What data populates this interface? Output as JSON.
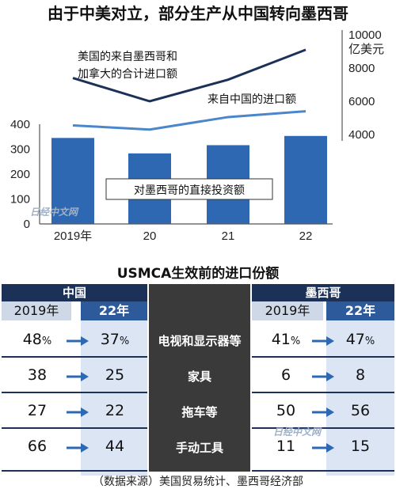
{
  "chart_data": [
    {
      "type": "bar+line",
      "title": "由于中美对立，部分生产从中国转向墨西哥",
      "categories": [
        "2019年",
        "20",
        "21",
        "22"
      ],
      "series": [
        {
          "name": "对墨西哥的直接投资额",
          "axis": "left",
          "values": [
            345,
            283,
            316,
            353
          ]
        },
        {
          "name": "美国的来自墨西哥和加拿大的合计进口额",
          "axis": "right",
          "values": [
            7400,
            6000,
            7300,
            9100
          ]
        },
        {
          "name": "来自中国的进口额",
          "axis": "right",
          "values": [
            4550,
            4300,
            5050,
            5400
          ]
        }
      ],
      "y_left": {
        "ylim": [
          0,
          400
        ],
        "ticks": [
          "0",
          "100",
          "200",
          "300",
          "400"
        ]
      },
      "y_right": {
        "ylim": [
          3000,
          10000
        ],
        "ticks": [
          "4000",
          "6000",
          "8000",
          "10000"
        ],
        "unit": "亿美元"
      }
    },
    {
      "type": "table",
      "title": "USMCA生效前的进口份额",
      "groups": [
        "中国",
        "墨西哥"
      ],
      "columns": [
        "2019年",
        "22年"
      ],
      "rows": [
        {
          "category": "电视和显示器等",
          "china": [
            "48",
            "37"
          ],
          "mexico": [
            "41",
            "47"
          ],
          "pct": true
        },
        {
          "category": "家具",
          "china": [
            "38",
            "25"
          ],
          "mexico": [
            "6",
            "8"
          ],
          "pct": false
        },
        {
          "category": "拖车等",
          "china": [
            "27",
            "22"
          ],
          "mexico": [
            "50",
            "56"
          ],
          "pct": false
        },
        {
          "category": "手动工具",
          "china": [
            "66",
            "44"
          ],
          "mexico": [
            "11",
            "15"
          ],
          "pct": false
        }
      ]
    }
  ],
  "percent_sign": "%",
  "watermark": "日经中文网",
  "footer": "（数据来源）美国贸易统计、墨西哥经济部",
  "colors": {
    "bar": "#2e68b3",
    "line_dark": "#1c3157",
    "line_light": "#4a86c9",
    "header": "#1c3157",
    "category_bg": "#3a3a3a"
  }
}
